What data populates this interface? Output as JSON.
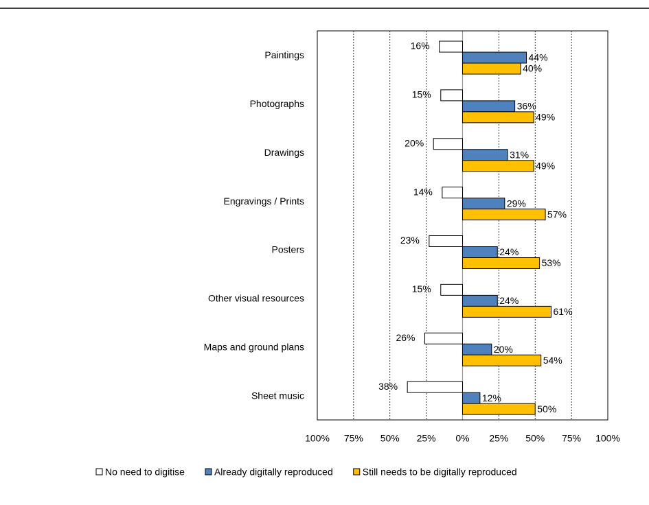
{
  "chart_data": {
    "type": "diverging-bar",
    "categories": [
      "Paintings",
      "Photographs",
      "Drawings",
      "Engravings / Prints",
      "Posters",
      "Other visual resources",
      "Maps and ground plans",
      "Sheet music"
    ],
    "series": [
      {
        "name": "No need to digitise",
        "color": "#ffffff",
        "values": [
          -16,
          -15,
          -20,
          -14,
          -23,
          -15,
          -26,
          -38
        ],
        "value_labels": [
          "16%",
          "15%",
          "20%",
          "14%",
          "23%",
          "15%",
          "26%",
          "38%"
        ]
      },
      {
        "name": "Already digitally reproduced",
        "color": "#4f81bd",
        "values": [
          44,
          36,
          31,
          29,
          24,
          24,
          20,
          12
        ],
        "value_labels": [
          "44%",
          "36%",
          "31%",
          "29%",
          "24%",
          "24%",
          "20%",
          "12%"
        ]
      },
      {
        "name": "Still needs to be digitally reproduced",
        "color": "#ffc000",
        "values": [
          40,
          49,
          49,
          57,
          53,
          61,
          54,
          50
        ],
        "value_labels": [
          "40%",
          "49%",
          "49%",
          "57%",
          "53%",
          "61%",
          "54%",
          "50%"
        ]
      }
    ],
    "xlim": [
      -100,
      100
    ],
    "xticks": [
      {
        "value": -100,
        "label": "100%"
      },
      {
        "value": -75,
        "label": "75%"
      },
      {
        "value": -50,
        "label": "50%"
      },
      {
        "value": -25,
        "label": "25%"
      },
      {
        "value": 0,
        "label": "0%"
      },
      {
        "value": 25,
        "label": "25%"
      },
      {
        "value": 50,
        "label": "50%"
      },
      {
        "value": 75,
        "label": "75%"
      },
      {
        "value": 100,
        "label": "100%"
      }
    ],
    "grid": true,
    "legend": "bottom"
  }
}
